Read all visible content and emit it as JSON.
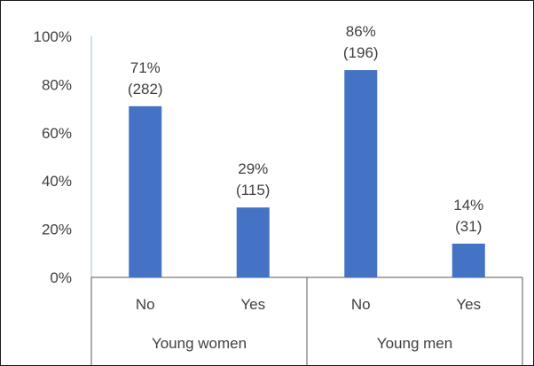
{
  "chart_data": {
    "type": "bar",
    "ylim": [
      0,
      100
    ],
    "y_ticks": [
      {
        "value": 0,
        "label": "0%"
      },
      {
        "value": 20,
        "label": "20%"
      },
      {
        "value": 40,
        "label": "40%"
      },
      {
        "value": 60,
        "label": "60%"
      },
      {
        "value": 80,
        "label": "80%"
      },
      {
        "value": 100,
        "label": "100%"
      }
    ],
    "grid": false,
    "groups": [
      {
        "name": "Young women",
        "categories": [
          {
            "label": "No",
            "value": 71,
            "value_label": "71%",
            "count_label": "(282)"
          },
          {
            "label": "Yes",
            "value": 29,
            "value_label": "29%",
            "count_label": "(115)"
          }
        ]
      },
      {
        "name": "Young men",
        "categories": [
          {
            "label": "No",
            "value": 86,
            "value_label": "86%",
            "count_label": "(196)"
          },
          {
            "label": "Yes",
            "value": 14,
            "value_label": "14%",
            "count_label": "(31)"
          }
        ]
      }
    ],
    "colors": {
      "bar": "#4472c4",
      "axis": "#5a5a5a",
      "y_axis": "#9dc3e6",
      "text": "#404040"
    }
  }
}
